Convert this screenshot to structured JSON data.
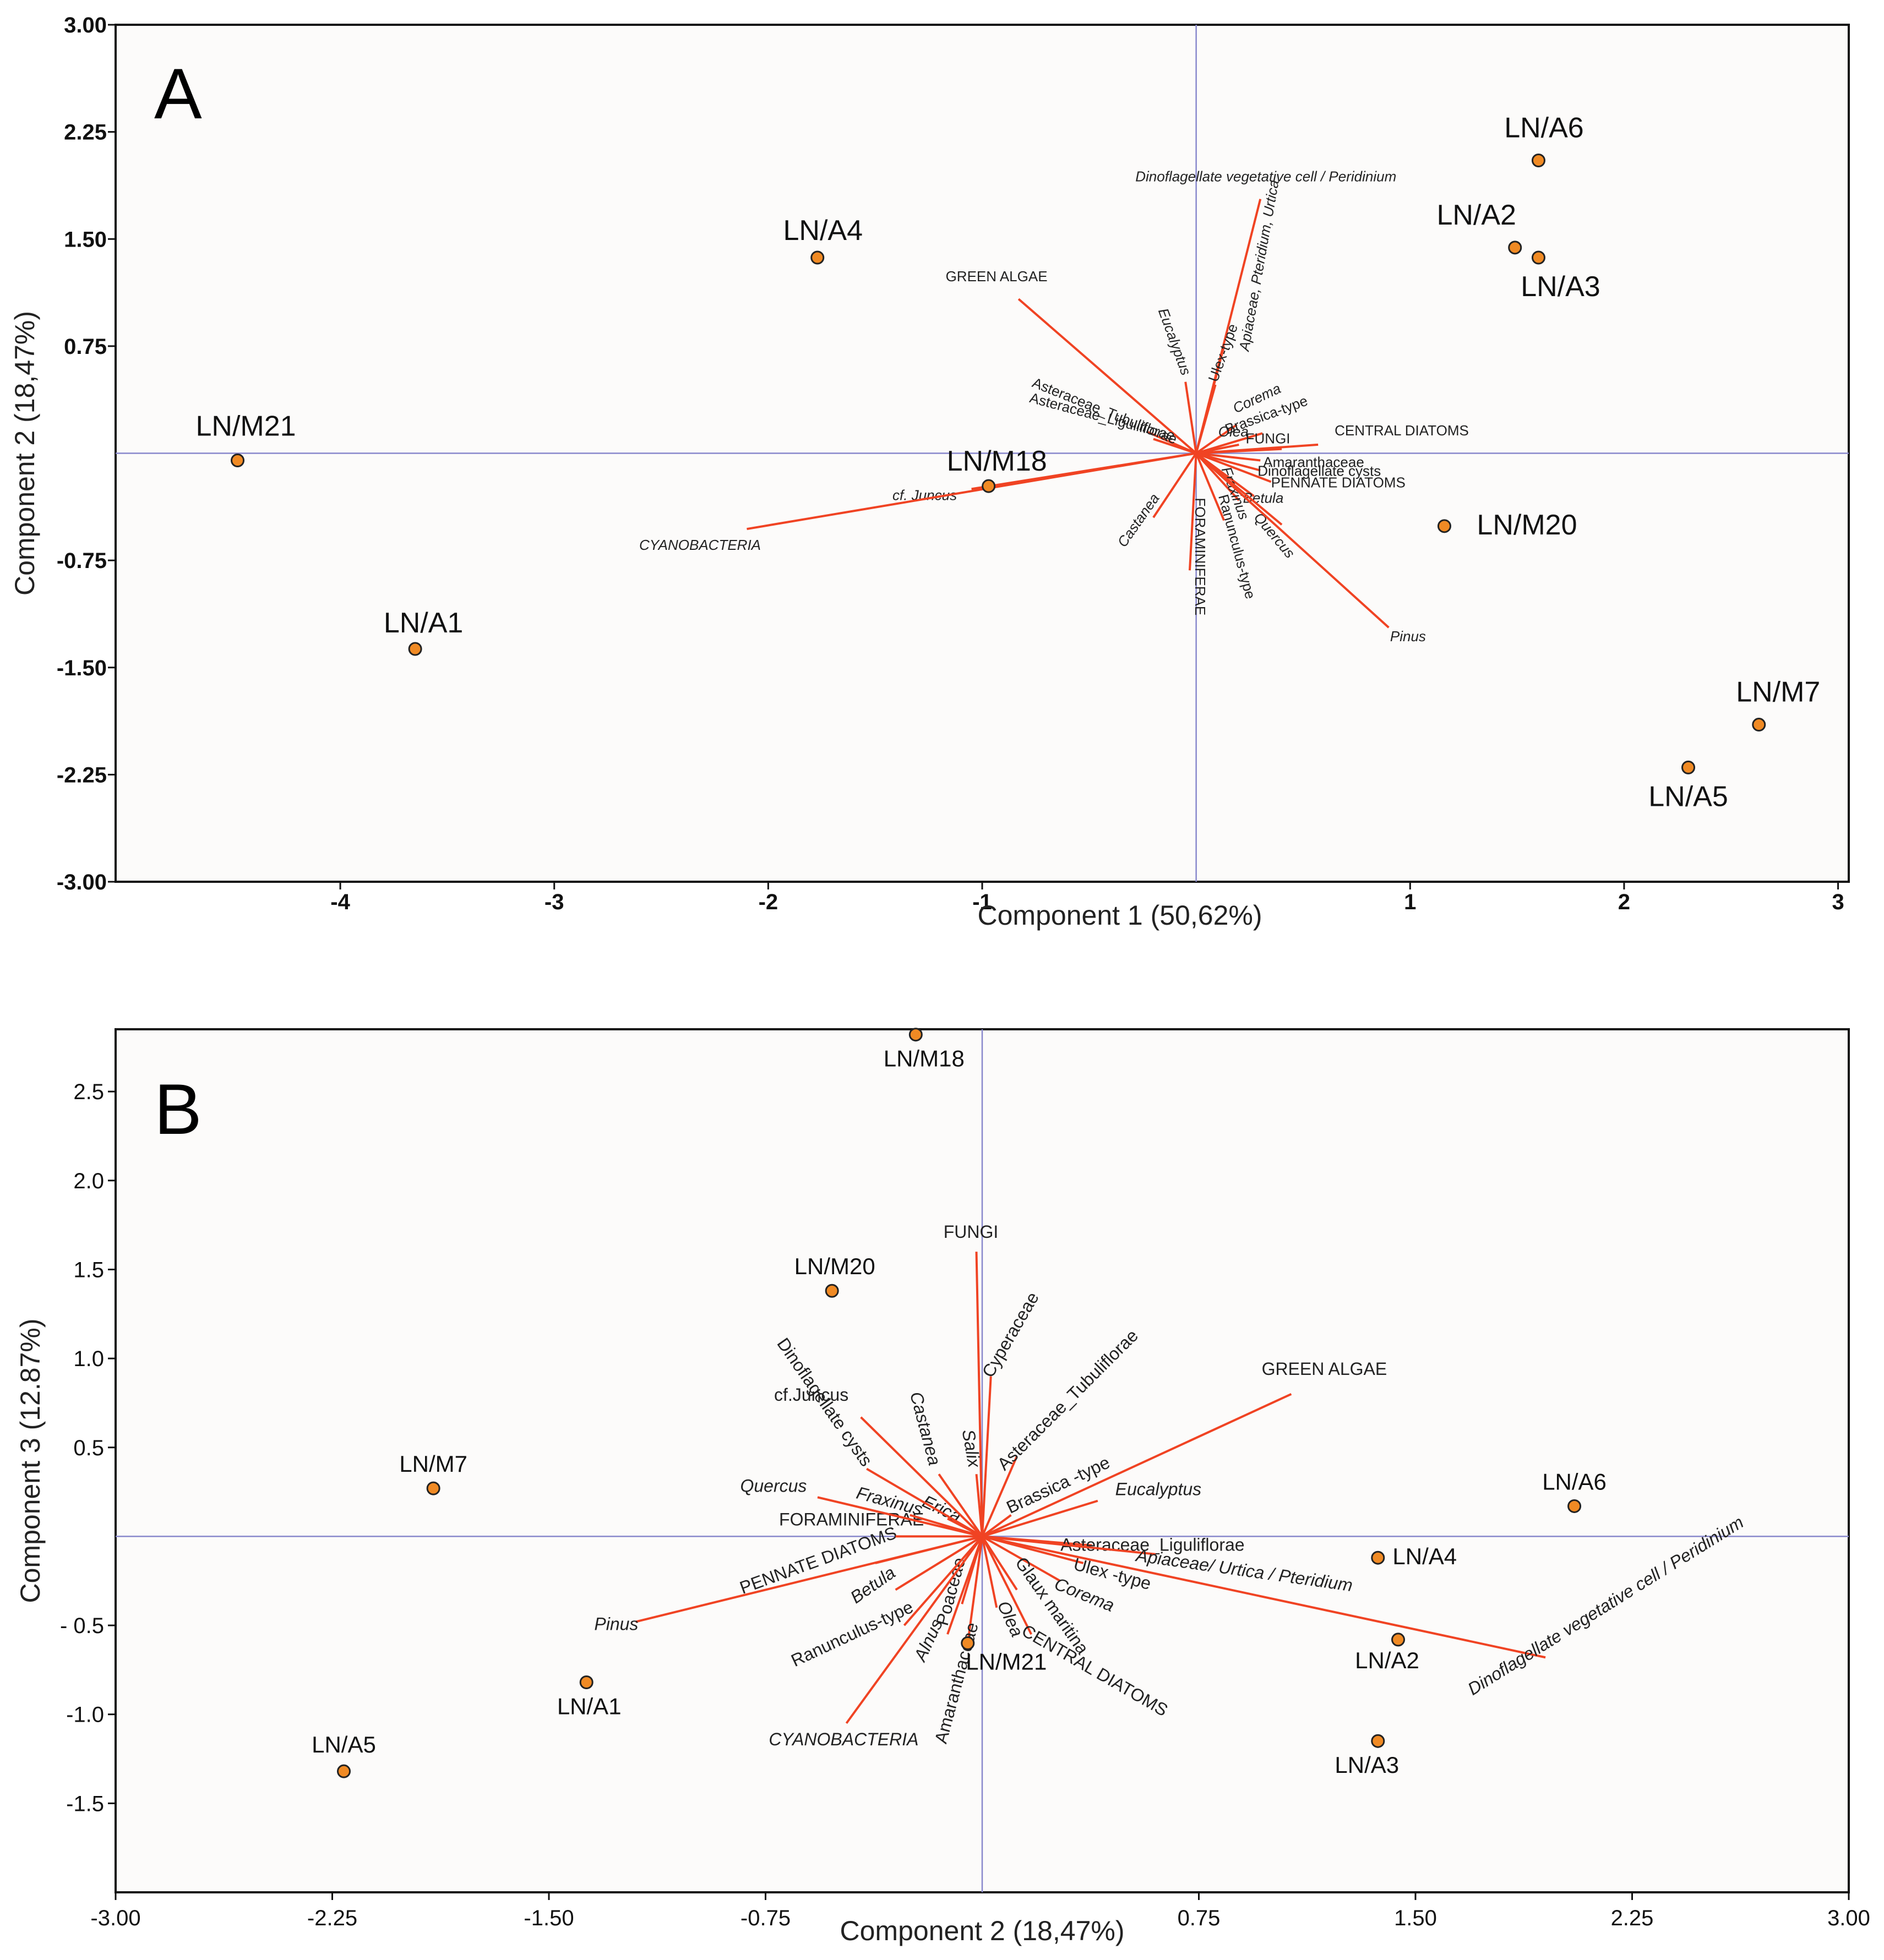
{
  "chart_data": [
    {
      "type": "scatter",
      "panel_label": "A",
      "xlabel": "Component 1 (50,62%)",
      "ylabel": "Component 2 (18,47%)",
      "xlim": [
        -5.05,
        3.05
      ],
      "ylim": [
        -3.0,
        3.0
      ],
      "x_ticks": [
        -4,
        -3,
        -2,
        -1,
        1,
        2,
        3
      ],
      "x_tick_labels": [
        "-4",
        "-3",
        "-2",
        "-1",
        "1",
        "2",
        "3"
      ],
      "y_ticks": [
        3,
        2.25,
        1.5,
        0.75,
        -0.75,
        -1.5,
        -2.25,
        -3
      ],
      "y_tick_labels": [
        "3.00",
        "2.25",
        "1.50",
        "0.75",
        "-0.75",
        "-1.50",
        "-2.25",
        "-3.00"
      ],
      "points": [
        {
          "label": "LN/A6",
          "x": 1.6,
          "y": 2.05
        },
        {
          "label": "LN/A2",
          "x": 1.49,
          "y": 1.44
        },
        {
          "label": "LN/A3",
          "x": 1.6,
          "y": 1.37
        },
        {
          "label": "LN/A4",
          "x": -1.77,
          "y": 1.37
        },
        {
          "label": "LN/M21",
          "x": -4.48,
          "y": -0.05
        },
        {
          "label": "LN/M18",
          "x": -0.97,
          "y": -0.23
        },
        {
          "label": "LN/M20",
          "x": 1.16,
          "y": -0.51
        },
        {
          "label": "LN/A1",
          "x": -3.65,
          "y": -1.37
        },
        {
          "label": "LN/M7",
          "x": 2.63,
          "y": -1.9
        },
        {
          "label": "LN/A5",
          "x": 2.3,
          "y": -2.2
        }
      ],
      "vectors": [
        {
          "label": "Dinoflagellate vegetative cell / Peridinium",
          "x": 0.3,
          "y": 1.78
        },
        {
          "label": "Apiaceae, Pteridium, Urtica",
          "x": 0.13,
          "y": 0.75
        },
        {
          "label": "GREEN ALGAE",
          "x": -0.83,
          "y": 1.08
        },
        {
          "label": "Eucalyptus",
          "x": -0.05,
          "y": 0.5
        },
        {
          "label": "Ulex-type",
          "x": 0.09,
          "y": 0.48
        },
        {
          "label": "Asteraceae_Tubuliflorae",
          "x": -0.23,
          "y": 0.15
        },
        {
          "label": "Asteraceae_Liguliflorae",
          "x": -0.2,
          "y": 0.1
        },
        {
          "label": "Corema",
          "x": 0.19,
          "y": 0.2
        },
        {
          "label": "Brassica-type",
          "x": 0.31,
          "y": 0.14
        },
        {
          "label": "Olea",
          "x": 0.2,
          "y": 0.06
        },
        {
          "label": "FUNGI",
          "x": 0.4,
          "y": 0.03
        },
        {
          "label": "CENTRAL DIATOMS",
          "x": 0.57,
          "y": 0.06
        },
        {
          "label": "Amaranthaceae",
          "x": 0.3,
          "y": -0.05
        },
        {
          "label": "Dinoflagellate cysts",
          "x": 0.3,
          "y": -0.12
        },
        {
          "label": "PENNATE DIATOMS",
          "x": 0.35,
          "y": -0.2
        },
        {
          "label": "Betula",
          "x": 0.27,
          "y": -0.3
        },
        {
          "label": "Fraxinus",
          "x": 0.2,
          "y": -0.33
        },
        {
          "label": "Ranunculus-type",
          "x": 0.13,
          "y": -0.47
        },
        {
          "label": "Quercus",
          "x": 0.4,
          "y": -0.5
        },
        {
          "label": "Pinus",
          "x": 0.9,
          "y": -1.22
        },
        {
          "label": "Castanea",
          "x": -0.2,
          "y": -0.45
        },
        {
          "label": "FORAMINIFERAE",
          "x": -0.03,
          "y": -0.82
        },
        {
          "label": "cf. Juncus",
          "x": -1.05,
          "y": -0.25
        },
        {
          "label": "CYANOBACTERIA",
          "x": -2.1,
          "y": -0.53
        }
      ]
    },
    {
      "type": "scatter",
      "panel_label": "B",
      "xlabel": "Component 2 (18,47%)",
      "ylabel": "Component 3 (12.87%)",
      "xlim": [
        -3.0,
        3.0
      ],
      "ylim": [
        -2.0,
        2.85
      ],
      "x_ticks": [
        -3,
        -2.25,
        -1.5,
        -0.75,
        0.75,
        1.5,
        2.25,
        3
      ],
      "x_tick_labels": [
        "-3.00",
        "-2.25",
        "-1.50",
        "-0.75",
        "0.75",
        "1.50",
        "2.25",
        "3.00"
      ],
      "y_ticks": [
        2.5,
        2.0,
        1.5,
        1.0,
        0.5,
        -0.5,
        -1.0,
        -1.5
      ],
      "y_tick_labels": [
        "2.5",
        "2.0",
        "1.5",
        "1.0",
        "0.5",
        "- 0.5",
        "-1.0",
        "-1.5"
      ],
      "points": [
        {
          "label": "LN/M18",
          "x": -0.23,
          "y": 2.82
        },
        {
          "label": "LN/M20",
          "x": -0.52,
          "y": 1.38
        },
        {
          "label": "LN/M7",
          "x": -1.9,
          "y": 0.27
        },
        {
          "label": "LN/A6",
          "x": 2.05,
          "y": 0.17
        },
        {
          "label": "LN/A4",
          "x": 1.37,
          "y": -0.12
        },
        {
          "label": "LN/A2",
          "x": 1.44,
          "y": -0.58
        },
        {
          "label": "LN/A3",
          "x": 1.37,
          "y": -1.15
        },
        {
          "label": "LN/A1",
          "x": -1.37,
          "y": -0.82
        },
        {
          "label": "LN/A5",
          "x": -2.21,
          "y": -1.32
        },
        {
          "label": "LN/M21",
          "x": -0.05,
          "y": -0.6
        }
      ],
      "vectors": [
        {
          "label": "FUNGI",
          "x": -0.02,
          "y": 1.6
        },
        {
          "label": "Cyperaceae",
          "x": 0.03,
          "y": 0.9
        },
        {
          "label": "Asteraceae_Tubuliflorae",
          "x": 0.12,
          "y": 0.45
        },
        {
          "label": "GREEN ALGAE",
          "x": 1.07,
          "y": 0.8
        },
        {
          "label": "Brassica -type",
          "x": 0.1,
          "y": 0.12
        },
        {
          "label": "Eucalyptus",
          "x": 0.4,
          "y": 0.2
        },
        {
          "label": "Asteraceae_Liguliflorae",
          "x": 0.38,
          "y": -0.05
        },
        {
          "label": "Apiaceae/ Urtica / Pteridium",
          "x": 0.6,
          "y": -0.1
        },
        {
          "label": "Ulex -type",
          "x": 0.35,
          "y": -0.15
        },
        {
          "label": "Dinoflagellate vegetative cell / Peridinium",
          "x": 1.95,
          "y": -0.68
        },
        {
          "label": "Corema",
          "x": 0.27,
          "y": -0.25
        },
        {
          "label": "Glaux maritina",
          "x": 0.12,
          "y": -0.3
        },
        {
          "label": "CENTRAL DIATOMS",
          "x": 0.17,
          "y": -0.55
        },
        {
          "label": "Olea",
          "x": 0.05,
          "y": -0.4
        },
        {
          "label": "Amaranthaceae",
          "x": -0.05,
          "y": -0.6
        },
        {
          "label": "Poaceae",
          "x": -0.07,
          "y": -0.38
        },
        {
          "label": "Alnus",
          "x": -0.12,
          "y": -0.55
        },
        {
          "label": "CYANOBACTERIA",
          "x": -0.47,
          "y": -1.05
        },
        {
          "label": "Ranunculus-type",
          "x": -0.27,
          "y": -0.5
        },
        {
          "label": "Betula",
          "x": -0.3,
          "y": -0.3
        },
        {
          "label": "PENNATE DIATOMS",
          "x": -0.37,
          "y": -0.15
        },
        {
          "label": "Pinus",
          "x": -1.2,
          "y": -0.48
        },
        {
          "label": "FORAMINIFERAE",
          "x": -0.3,
          "y": 0.0
        },
        {
          "label": "Quercus",
          "x": -0.57,
          "y": 0.22
        },
        {
          "label": "Fraxinus",
          "x": -0.25,
          "y": 0.12
        },
        {
          "label": "Erica",
          "x": -0.12,
          "y": 0.1
        },
        {
          "label": "Salix",
          "x": -0.02,
          "y": 0.35
        },
        {
          "label": "Castanea",
          "x": -0.15,
          "y": 0.35
        },
        {
          "label": "Dinoflagellate cysts",
          "x": -0.4,
          "y": 0.38
        },
        {
          "label": "cf.Juncus",
          "x": -0.42,
          "y": 0.67
        }
      ]
    }
  ],
  "colors": {
    "vector": "#f04323",
    "point_fill": "#f08a24",
    "axis_line": "#8888cc",
    "plot_bg": "#fcfbfa"
  }
}
